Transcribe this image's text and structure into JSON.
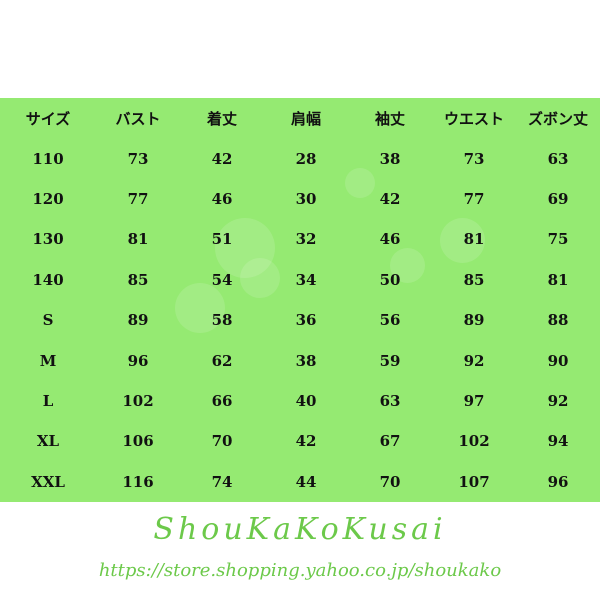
{
  "table": {
    "headers": [
      "サイズ",
      "バスト",
      "着丈",
      "肩幅",
      "袖丈",
      "ウエスト",
      "ズボン丈"
    ],
    "rows": [
      [
        "110",
        "73",
        "42",
        "28",
        "38",
        "73",
        "63"
      ],
      [
        "120",
        "77",
        "46",
        "30",
        "42",
        "77",
        "69"
      ],
      [
        "130",
        "81",
        "51",
        "32",
        "46",
        "81",
        "75"
      ],
      [
        "140",
        "85",
        "54",
        "34",
        "50",
        "85",
        "81"
      ],
      [
        "S",
        "89",
        "58",
        "36",
        "56",
        "89",
        "88"
      ],
      [
        "M",
        "96",
        "62",
        "38",
        "59",
        "92",
        "90"
      ],
      [
        "L",
        "102",
        "66",
        "40",
        "63",
        "97",
        "92"
      ],
      [
        "XL",
        "106",
        "70",
        "42",
        "67",
        "102",
        "94"
      ],
      [
        "XXL",
        "116",
        "74",
        "44",
        "70",
        "107",
        "96"
      ]
    ]
  },
  "watermark": {
    "brand": "ShouKaKoKusai",
    "url": "https://store.shopping.yahoo.co.jp/shoukako"
  },
  "colors": {
    "background": "#95ea72",
    "text": "#111111"
  }
}
